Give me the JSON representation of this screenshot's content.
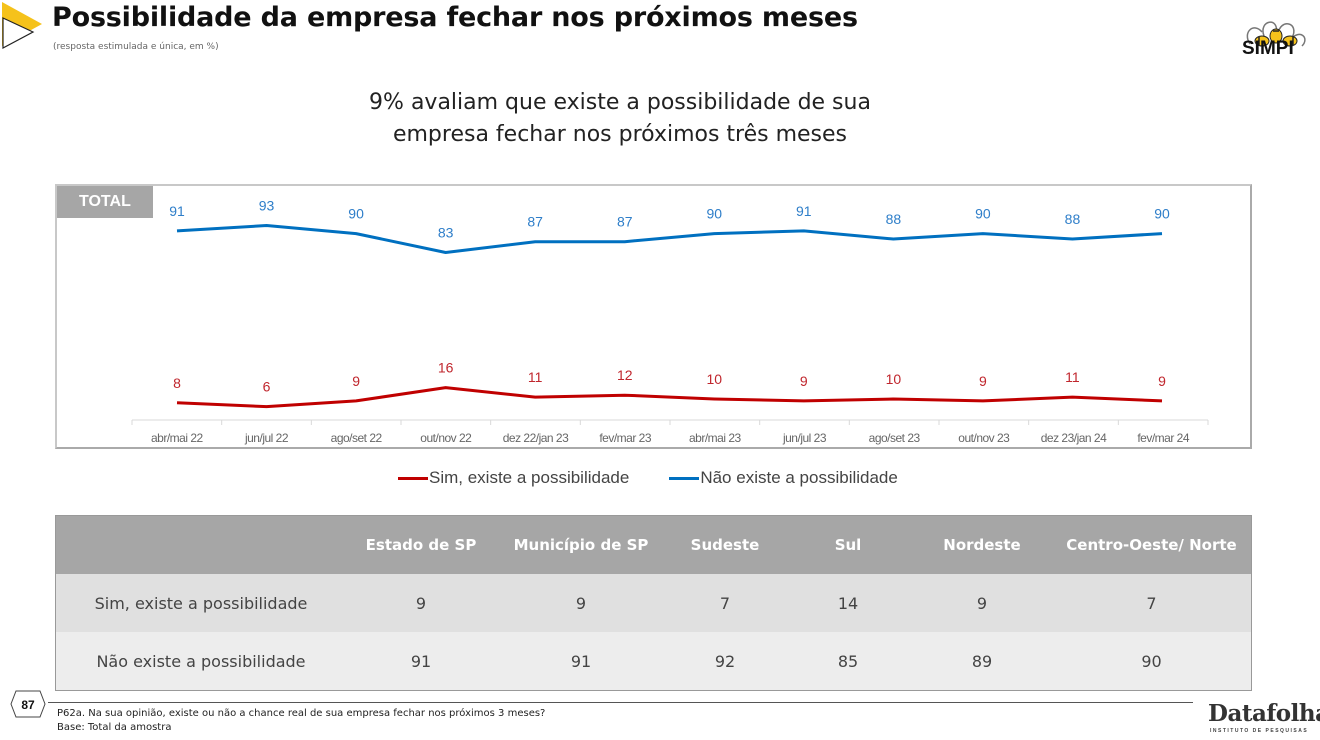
{
  "header": {
    "title": "Possibilidade da empresa fechar nos próximos meses",
    "subtitle": "(resposta estimulada e única, em %)",
    "headline_line1": "9% avaliam que existe a possibilidade de sua",
    "headline_line2": "empresa fechar nos próximos três meses",
    "logo_text": "SIMPI"
  },
  "chart_data": {
    "type": "line",
    "panel_label": "TOTAL",
    "categories": [
      "abr/mai 22",
      "jun/jul 22",
      "ago/set 22",
      "out/nov 22",
      "dez 22/jan 23",
      "fev/mar 23",
      "abr/mai 23",
      "jun/jul 23",
      "ago/set 23",
      "out/nov 23",
      "dez 23/jan 24",
      "fev/mar 24"
    ],
    "series": [
      {
        "name": "Sim, existe a possibilidade",
        "color": "#c00000",
        "label_color": "#c0262d",
        "values": [
          8,
          6,
          9,
          16,
          11,
          12,
          10,
          9,
          10,
          9,
          11,
          9
        ]
      },
      {
        "name": "Não existe a possibilidade",
        "color": "#0070c0",
        "label_color": "#2e7ec9",
        "values": [
          91,
          93,
          90,
          83,
          87,
          87,
          90,
          91,
          88,
          90,
          88,
          90
        ]
      }
    ],
    "title": "",
    "xlabel": "",
    "ylabel": "",
    "grid": false,
    "legend": "bottom-center",
    "data_labels": true
  },
  "table": {
    "columns": [
      "",
      "Estado de  SP",
      "Município de SP",
      "Sudeste",
      "Sul",
      "Nordeste",
      "Centro-Oeste/ Norte"
    ],
    "rows": [
      {
        "label": "Sim, existe a possibilidade",
        "values": [
          "9",
          "9",
          "7",
          "14",
          "9",
          "7"
        ]
      },
      {
        "label": "Não existe a possibilidade",
        "values": [
          "91",
          "91",
          "92",
          "85",
          "89",
          "90"
        ]
      }
    ]
  },
  "footer": {
    "page_number": "87",
    "question": "P62a. Na sua opinião,  existe ou não a chance real de sua empresa fechar nos próximos 3 meses?",
    "base": "Base: Total da amostra",
    "brand": "Datafolha",
    "brand_sub": "INSTITUTO DE PESQUISAS"
  }
}
